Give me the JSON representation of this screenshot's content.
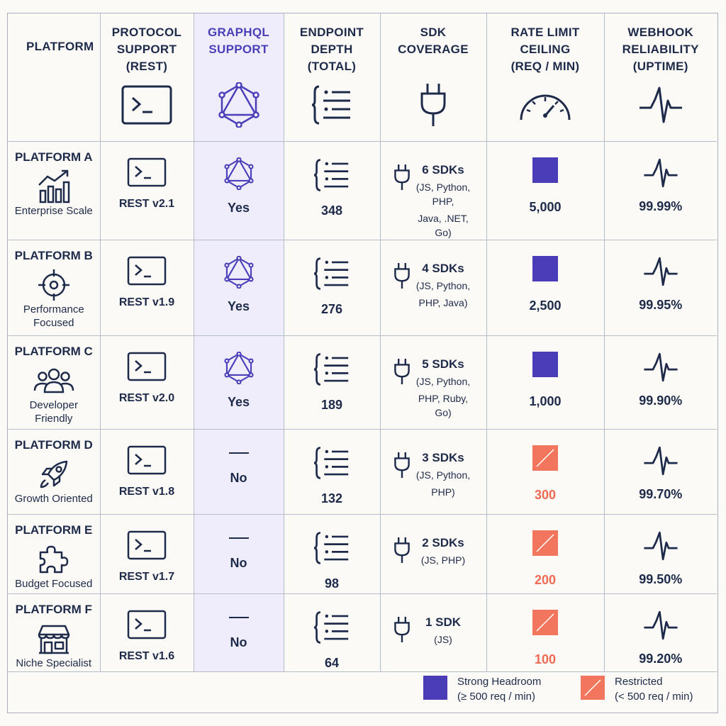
{
  "header": {
    "platform": "PLATFORM",
    "protocol": [
      "PROTOCOL",
      "SUPPORT",
      "(REST)"
    ],
    "graphql": [
      "GRAPHQL",
      "SUPPORT"
    ],
    "endpoint": [
      "ENDPOINT",
      "DEPTH",
      "(TOTAL)"
    ],
    "sdk": [
      "SDK",
      "COVERAGE"
    ],
    "rate": [
      "RATE LIMIT",
      "CEILING",
      "(REQ / MIN)"
    ],
    "webhook": [
      "WEBHOOK",
      "RELIABILITY",
      "(UPTIME)"
    ]
  },
  "rows": [
    {
      "name": "PLATFORM A",
      "sub": [
        "Enterprise Scale"
      ],
      "icon": "growth-chart-icon",
      "rest": "REST v2.1",
      "graphql": "Yes",
      "graphql_supported": true,
      "endpoints": "348",
      "sdk_count": "6 SDKs",
      "sdk_langs": [
        "(JS, Python, PHP,",
        "Java, .NET, Go)"
      ],
      "rate": "5,000",
      "rate_status": "strong",
      "uptime": "99.99%"
    },
    {
      "name": "PLATFORM B",
      "sub": [
        "Performance",
        "Focused"
      ],
      "icon": "target-icon",
      "rest": "REST v1.9",
      "graphql": "Yes",
      "graphql_supported": true,
      "endpoints": "276",
      "sdk_count": "4 SDKs",
      "sdk_langs": [
        "(JS, Python,",
        "PHP, Java)"
      ],
      "rate": "2,500",
      "rate_status": "strong",
      "uptime": "99.95%"
    },
    {
      "name": "PLATFORM C",
      "sub": [
        "Developer",
        "Friendly"
      ],
      "icon": "users-icon",
      "rest": "REST v2.0",
      "graphql": "Yes",
      "graphql_supported": true,
      "endpoints": "189",
      "sdk_count": "5 SDKs",
      "sdk_langs": [
        "(JS, Python,",
        "PHP, Ruby, Go)"
      ],
      "rate": "1,000",
      "rate_status": "strong",
      "uptime": "99.90%"
    },
    {
      "name": "PLATFORM D",
      "sub": [
        "Growth Oriented"
      ],
      "icon": "rocket-icon",
      "rest": "REST v1.8",
      "graphql": "No",
      "graphql_supported": false,
      "endpoints": "132",
      "sdk_count": "3 SDKs",
      "sdk_langs": [
        "(JS, Python,",
        "PHP)"
      ],
      "rate": "300",
      "rate_status": "restricted",
      "uptime": "99.70%"
    },
    {
      "name": "PLATFORM E",
      "sub": [
        "Budget Focused"
      ],
      "icon": "puzzle-icon",
      "rest": "REST v1.7",
      "graphql": "No",
      "graphql_supported": false,
      "endpoints": "98",
      "sdk_count": "2 SDKs",
      "sdk_langs": [
        "(JS, PHP)"
      ],
      "rate": "200",
      "rate_status": "restricted",
      "uptime": "99.50%"
    },
    {
      "name": "PLATFORM F",
      "sub": [
        "Niche Specialist"
      ],
      "icon": "storefront-icon",
      "rest": "REST v1.6",
      "graphql": "No",
      "graphql_supported": false,
      "endpoints": "64",
      "sdk_count": "1 SDK",
      "sdk_langs": [
        "(JS)"
      ],
      "rate": "100",
      "rate_status": "restricted",
      "uptime": "99.20%"
    }
  ],
  "legend": {
    "strong": [
      "Strong Headroom",
      "(≥ 500 req / min)"
    ],
    "restricted": [
      "Restricted",
      "(< 500 req / min)"
    ]
  },
  "colors": {
    "accent": "#4a3fb8",
    "strong_square": "#4b3db8",
    "restricted": "#f2765e",
    "graphql_bg": "#efedfc",
    "ink": "#1e2a4a"
  }
}
